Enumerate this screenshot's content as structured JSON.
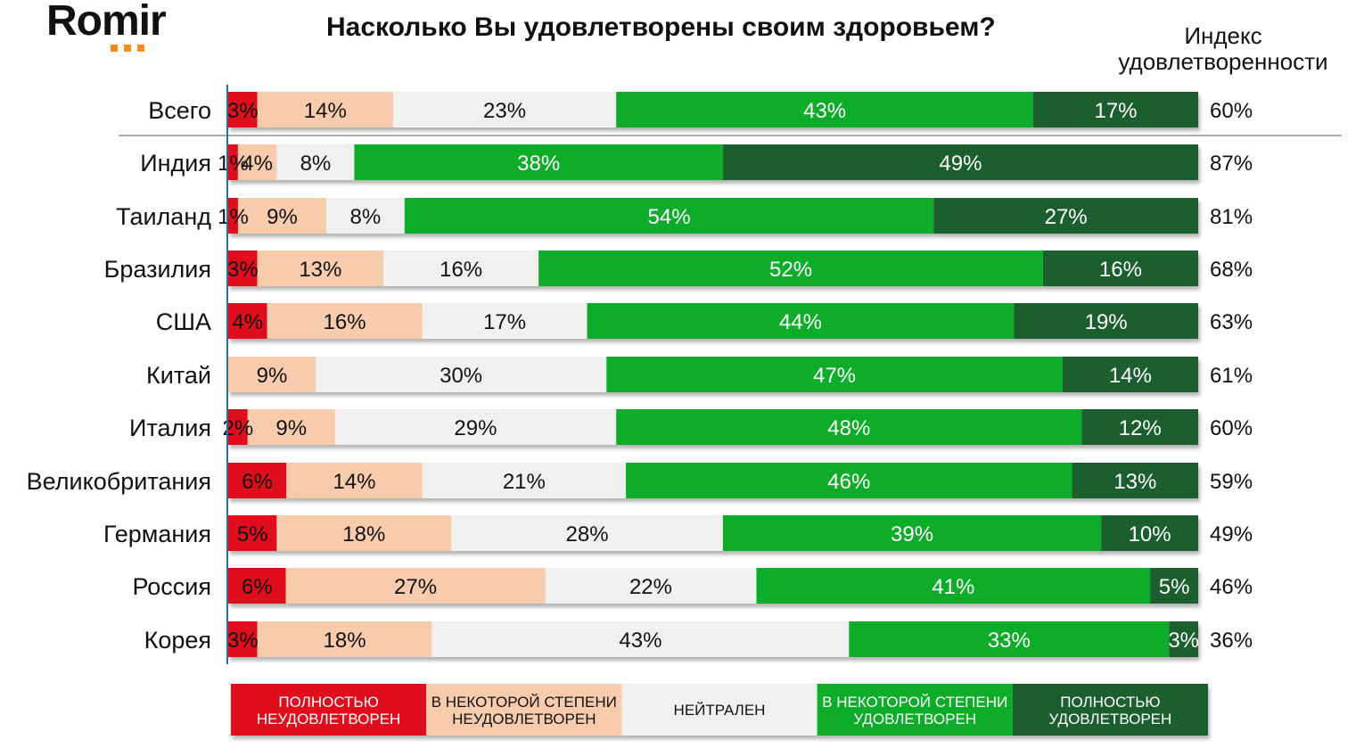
{
  "logo": "Romir",
  "chart_data": {
    "type": "bar",
    "orientation": "horizontal",
    "stacked": true,
    "title": "Насколько Вы удовлетворены своим здоровьем?",
    "index_header": "Индекс удовлетворенности",
    "categories": [
      "Всего",
      "Индия",
      "Таиланд",
      "Бразилия",
      "США",
      "Китай",
      "Италия",
      "Великобритания",
      "Германия",
      "Россия",
      "Корея"
    ],
    "series": [
      {
        "name": "Полностью неудовлетворен",
        "color": "#e0101e",
        "values": [
          3,
          1,
          1,
          3,
          4,
          0,
          2,
          6,
          5,
          6,
          3
        ]
      },
      {
        "name": "В некоторой степени неудовлетворен",
        "color": "#f8cbad",
        "values": [
          14,
          4,
          9,
          13,
          16,
          9,
          9,
          14,
          18,
          27,
          18
        ]
      },
      {
        "name": "Нейтрален",
        "color": "#f0f0f0",
        "values": [
          23,
          8,
          8,
          16,
          17,
          30,
          29,
          21,
          28,
          22,
          43
        ]
      },
      {
        "name": "В некоторой степени удовлетворен",
        "color": "#0aad2b",
        "values": [
          43,
          38,
          54,
          52,
          44,
          47,
          48,
          46,
          39,
          41,
          33
        ]
      },
      {
        "name": "Полностью удовлетворен",
        "color": "#1d5e2e",
        "values": [
          17,
          49,
          27,
          16,
          19,
          14,
          12,
          13,
          10,
          5,
          3
        ]
      }
    ],
    "index_values": [
      "60%",
      "87%",
      "81%",
      "68%",
      "63%",
      "61%",
      "60%",
      "59%",
      "49%",
      "46%",
      "36%"
    ],
    "legend_lines": [
      [
        "Полностью",
        "неудовлетворен"
      ],
      [
        "В некоторой степени",
        "неудовлетворен"
      ],
      [
        "Нейтрален"
      ],
      [
        "В некоторой степени",
        "удовлетворен"
      ],
      [
        "Полностью",
        "удовлетворен"
      ]
    ],
    "legend_placement": "bottom"
  }
}
